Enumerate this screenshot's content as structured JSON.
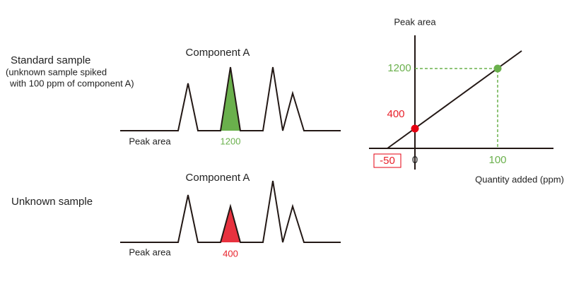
{
  "standard": {
    "label": "Standard sample",
    "note_lines": [
      "(unknown sample spiked",
      "with 100 ppm of component A)"
    ],
    "component": "Component A",
    "peak_area_label": "Peak area",
    "peak_area_value": "1200"
  },
  "unknown": {
    "label": "Unknown sample",
    "component": "Component A",
    "peak_area_label": "Peak area",
    "peak_area_value": "400"
  },
  "plot": {
    "y_axis_label": "Peak area",
    "x_axis_label": "Quantity added (ppm)",
    "y_labels": [
      "1200",
      "400"
    ],
    "x_labels": [
      "-50",
      "0",
      "100"
    ]
  }
}
